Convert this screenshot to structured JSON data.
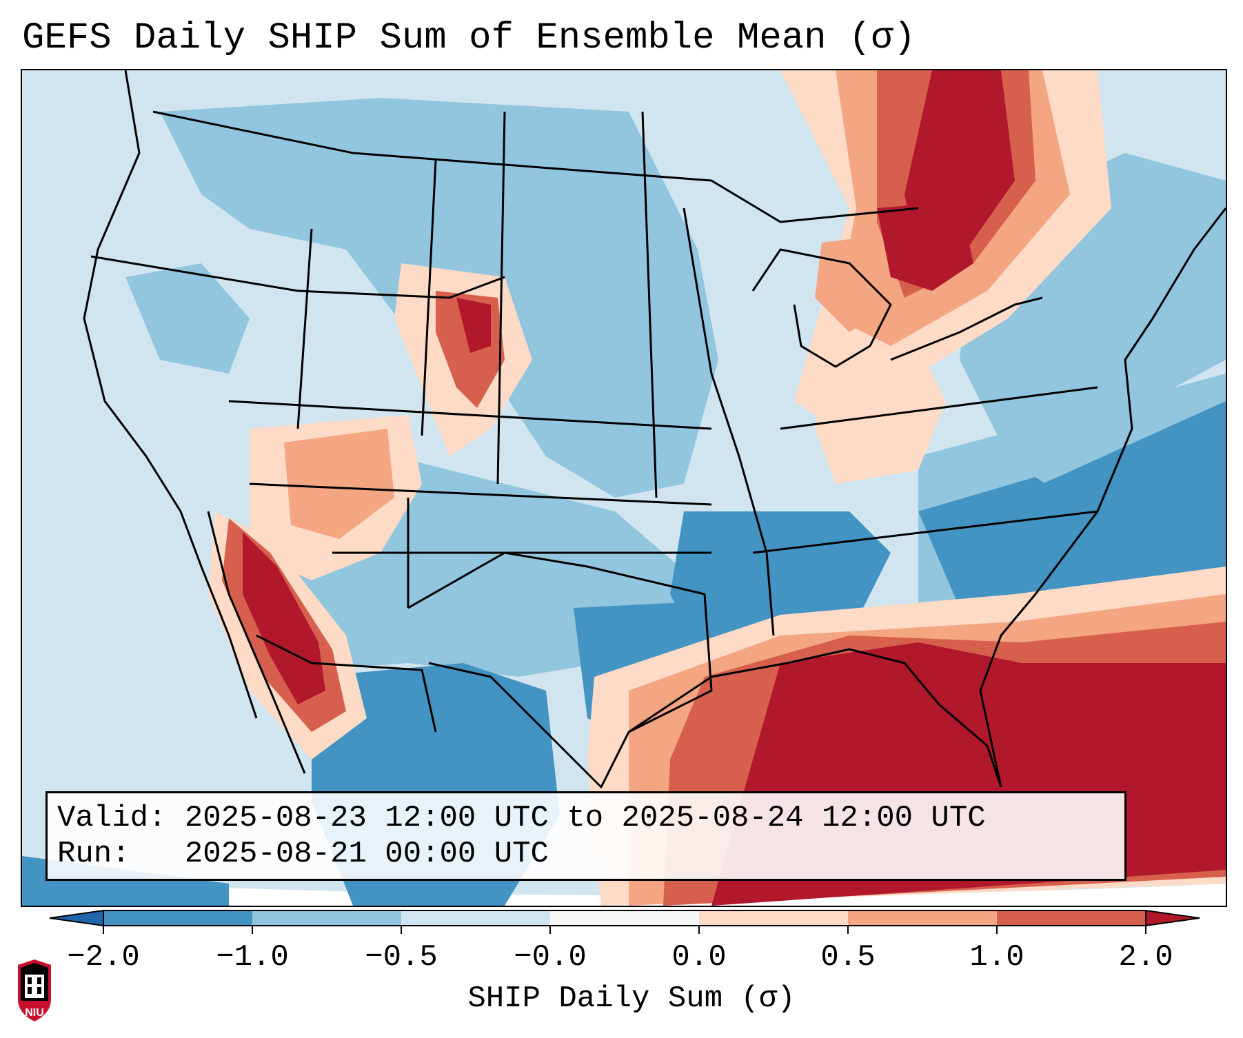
{
  "title": "GEFS Daily SHIP Sum of Ensemble Mean (σ)",
  "info": {
    "valid_label": "Valid:",
    "valid_value": "2025-08-23 12:00 UTC to 2025-08-24 12:00 UTC",
    "run_label": "Run:",
    "run_value": "2025-08-21 00:00 UTC"
  },
  "colorbar": {
    "label": "SHIP Daily Sum (σ)",
    "ticks": [
      "−2.0",
      "−1.0",
      "−0.5",
      "−0.0",
      "0.0",
      "0.5",
      "1.0",
      "2.0"
    ],
    "bin_colors": [
      "#4393c3",
      "#92c5de",
      "#d1e5f0",
      "#f7f7f7",
      "#fddbc7",
      "#f4a582",
      "#d6604d"
    ],
    "under_color": "#2166ac",
    "over_color": "#b2182b"
  },
  "map_colors": {
    "neg_strong": "#4393c3",
    "neg_mid": "#92c5de",
    "neg_weak": "#d1e5f0",
    "pos_weak": "#fddbc7",
    "pos_mid": "#f4a582",
    "pos_strong": "#d6604d",
    "pos_extreme": "#b2182b",
    "outside": "#ffffff"
  },
  "logo": {
    "text": "NIU"
  }
}
